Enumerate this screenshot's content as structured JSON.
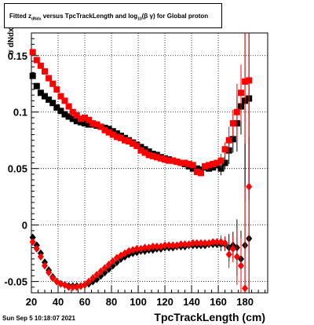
{
  "title": {
    "prefix": "Fitted  z",
    "sub1": "dNdx",
    "middle": "  versus  TpcTrackLength and log",
    "sub2": "10",
    "suffix": "(β  γ) for Global proton"
  },
  "timestamp": "Sun Sep  5 10:18:07 2021",
  "colors": {
    "black_series": "#000000",
    "red_series": "#ff0000",
    "grid": "#000000"
  },
  "chart_data": {
    "type": "scatter",
    "xlabel": "TpcTrackLength (cm)",
    "ylabel": "σ dNdx",
    "xlim": [
      20,
      197
    ],
    "ylim": [
      -0.06,
      0.17
    ],
    "grid": true,
    "x_ticks": [
      20,
      40,
      60,
      80,
      100,
      120,
      140,
      160,
      180
    ],
    "y_ticks": [
      -0.05,
      0,
      0.05,
      0.1,
      0.15
    ],
    "y_tick_labels": [
      "-0.05",
      "0",
      "0.05",
      "0.1",
      "0.15"
    ],
    "series": [
      {
        "color": "black",
        "marker": "square",
        "points": [
          [
            21,
            0.132
          ],
          [
            24,
            0.123
          ],
          [
            27,
            0.117
          ],
          [
            30,
            0.114
          ],
          [
            33,
            0.111
          ],
          [
            36,
            0.108
          ],
          [
            39,
            0.104
          ],
          [
            42,
            0.101
          ],
          [
            45,
            0.098
          ],
          [
            48,
            0.096
          ],
          [
            51,
            0.094
          ],
          [
            54,
            0.092
          ],
          [
            57,
            0.091
          ],
          [
            60,
            0.09
          ],
          [
            63,
            0.089
          ],
          [
            66,
            0.089
          ],
          [
            69,
            0.088
          ],
          [
            72,
            0.087
          ],
          [
            75,
            0.086
          ],
          [
            78,
            0.085
          ],
          [
            81,
            0.083
          ],
          [
            84,
            0.081
          ],
          [
            87,
            0.079
          ],
          [
            90,
            0.077
          ],
          [
            93,
            0.075
          ],
          [
            96,
            0.073
          ],
          [
            99,
            0.071
          ],
          [
            102,
            0.069
          ],
          [
            105,
            0.067
          ],
          [
            108,
            0.065
          ],
          [
            111,
            0.063
          ],
          [
            114,
            0.062
          ],
          [
            117,
            0.06
          ],
          [
            120,
            0.059
          ],
          [
            123,
            0.058
          ],
          [
            126,
            0.057
          ],
          [
            129,
            0.056
          ],
          [
            132,
            0.055
          ],
          [
            135,
            0.054
          ],
          [
            138,
            0.052
          ],
          [
            141,
            0.05
          ],
          [
            144,
            0.05
          ],
          [
            147,
            0.049
          ],
          [
            150,
            0.051
          ],
          [
            153,
            0.05
          ],
          [
            156,
            0.051
          ],
          [
            159,
            0.053
          ],
          [
            162,
            0.05
          ],
          [
            165,
            0.055
          ],
          [
            168,
            0.066
          ],
          [
            171,
            0.076
          ],
          [
            174,
            0.09
          ],
          [
            177,
            0.105
          ],
          [
            180,
            0.11
          ],
          [
            183,
            0.112
          ]
        ]
      },
      {
        "color": "red",
        "marker": "square",
        "points": [
          [
            21,
            0.153
          ],
          [
            24,
            0.146
          ],
          [
            27,
            0.141
          ],
          [
            30,
            0.136
          ],
          [
            33,
            0.13
          ],
          [
            36,
            0.125
          ],
          [
            39,
            0.12
          ],
          [
            42,
            0.114
          ],
          [
            45,
            0.11
          ],
          [
            48,
            0.105
          ],
          [
            51,
            0.1
          ],
          [
            54,
            0.097
          ],
          [
            57,
            0.094
          ],
          [
            60,
            0.095
          ],
          [
            63,
            0.093
          ],
          [
            66,
            0.09
          ],
          [
            69,
            0.089
          ],
          [
            72,
            0.087
          ],
          [
            75,
            0.084
          ],
          [
            78,
            0.082
          ],
          [
            81,
            0.08
          ],
          [
            84,
            0.078
          ],
          [
            87,
            0.077
          ],
          [
            90,
            0.075
          ],
          [
            93,
            0.074
          ],
          [
            96,
            0.072
          ],
          [
            99,
            0.07
          ],
          [
            102,
            0.066
          ],
          [
            105,
            0.064
          ],
          [
            108,
            0.062
          ],
          [
            111,
            0.061
          ],
          [
            114,
            0.06
          ],
          [
            117,
            0.059
          ],
          [
            120,
            0.058
          ],
          [
            123,
            0.057
          ],
          [
            126,
            0.057
          ],
          [
            129,
            0.056
          ],
          [
            132,
            0.055
          ],
          [
            135,
            0.055
          ],
          [
            138,
            0.054
          ],
          [
            141,
            0.053
          ],
          [
            144,
            0.047
          ],
          [
            147,
            0.046
          ],
          [
            150,
            0.052
          ],
          [
            153,
            0.053
          ],
          [
            156,
            0.054
          ],
          [
            159,
            0.055
          ],
          [
            162,
            0.057
          ],
          [
            165,
            0.067
          ],
          [
            168,
            0.075
          ],
          [
            171,
            0.09
          ],
          [
            174,
            0.1
          ],
          [
            177,
            0.117
          ],
          [
            180,
            0.127
          ],
          [
            183,
            0.128
          ]
        ]
      },
      {
        "color": "black",
        "marker": "diamond",
        "points": [
          [
            21,
            -0.011
          ],
          [
            24,
            -0.018
          ],
          [
            27,
            -0.025
          ],
          [
            30,
            -0.033
          ],
          [
            33,
            -0.04
          ],
          [
            36,
            -0.046
          ],
          [
            39,
            -0.05
          ],
          [
            42,
            -0.052
          ],
          [
            45,
            -0.053
          ],
          [
            48,
            -0.054
          ],
          [
            51,
            -0.054
          ],
          [
            54,
            -0.054
          ],
          [
            57,
            -0.054
          ],
          [
            60,
            -0.053
          ],
          [
            63,
            -0.052
          ],
          [
            66,
            -0.05
          ],
          [
            69,
            -0.048
          ],
          [
            72,
            -0.045
          ],
          [
            75,
            -0.042
          ],
          [
            78,
            -0.039
          ],
          [
            81,
            -0.036
          ],
          [
            84,
            -0.033
          ],
          [
            87,
            -0.03
          ],
          [
            90,
            -0.028
          ],
          [
            93,
            -0.026
          ],
          [
            96,
            -0.025
          ],
          [
            99,
            -0.024
          ],
          [
            102,
            -0.023
          ],
          [
            105,
            -0.023
          ],
          [
            108,
            -0.022
          ],
          [
            111,
            -0.022
          ],
          [
            114,
            -0.021
          ],
          [
            117,
            -0.021
          ],
          [
            120,
            -0.02
          ],
          [
            123,
            -0.02
          ],
          [
            126,
            -0.02
          ],
          [
            129,
            -0.019
          ],
          [
            132,
            -0.019
          ],
          [
            135,
            -0.019
          ],
          [
            138,
            -0.018
          ],
          [
            141,
            -0.018
          ],
          [
            144,
            -0.018
          ],
          [
            147,
            -0.018
          ],
          [
            150,
            -0.018
          ],
          [
            153,
            -0.017
          ],
          [
            156,
            -0.017
          ],
          [
            159,
            -0.017
          ],
          [
            162,
            -0.017
          ],
          [
            165,
            -0.017
          ],
          [
            168,
            -0.02
          ],
          [
            171,
            -0.018
          ],
          [
            174,
            -0.02
          ],
          [
            177,
            -0.03
          ],
          [
            180,
            -0.018
          ],
          [
            183,
            -0.012
          ]
        ]
      },
      {
        "color": "red",
        "marker": "diamond",
        "points": [
          [
            21,
            -0.015
          ],
          [
            24,
            -0.021
          ],
          [
            27,
            -0.028
          ],
          [
            30,
            -0.036
          ],
          [
            33,
            -0.042
          ],
          [
            36,
            -0.047
          ],
          [
            39,
            -0.05
          ],
          [
            42,
            -0.052
          ],
          [
            45,
            -0.053
          ],
          [
            48,
            -0.055
          ],
          [
            51,
            -0.055
          ],
          [
            54,
            -0.055
          ],
          [
            57,
            -0.054
          ],
          [
            60,
            -0.053
          ],
          [
            63,
            -0.05
          ],
          [
            66,
            -0.047
          ],
          [
            69,
            -0.044
          ],
          [
            72,
            -0.041
          ],
          [
            75,
            -0.038
          ],
          [
            78,
            -0.035
          ],
          [
            81,
            -0.032
          ],
          [
            84,
            -0.029
          ],
          [
            87,
            -0.027
          ],
          [
            90,
            -0.025
          ],
          [
            93,
            -0.023
          ],
          [
            96,
            -0.022
          ],
          [
            99,
            -0.021
          ],
          [
            102,
            -0.021
          ],
          [
            105,
            -0.02
          ],
          [
            108,
            -0.02
          ],
          [
            111,
            -0.019
          ],
          [
            114,
            -0.019
          ],
          [
            117,
            -0.019
          ],
          [
            120,
            -0.018
          ],
          [
            123,
            -0.018
          ],
          [
            126,
            -0.018
          ],
          [
            129,
            -0.018
          ],
          [
            132,
            -0.017
          ],
          [
            135,
            -0.017
          ],
          [
            138,
            -0.017
          ],
          [
            141,
            -0.016
          ],
          [
            144,
            -0.016
          ],
          [
            147,
            -0.016
          ],
          [
            150,
            -0.016
          ],
          [
            153,
            -0.016
          ],
          [
            156,
            -0.015
          ],
          [
            159,
            -0.015
          ],
          [
            162,
            -0.015
          ],
          [
            165,
            -0.016
          ],
          [
            168,
            -0.026
          ],
          [
            171,
            -0.021
          ],
          [
            174,
            -0.028
          ],
          [
            177,
            -0.036
          ],
          [
            180,
            -0.056
          ],
          [
            183,
            0.034
          ]
        ]
      }
    ]
  }
}
